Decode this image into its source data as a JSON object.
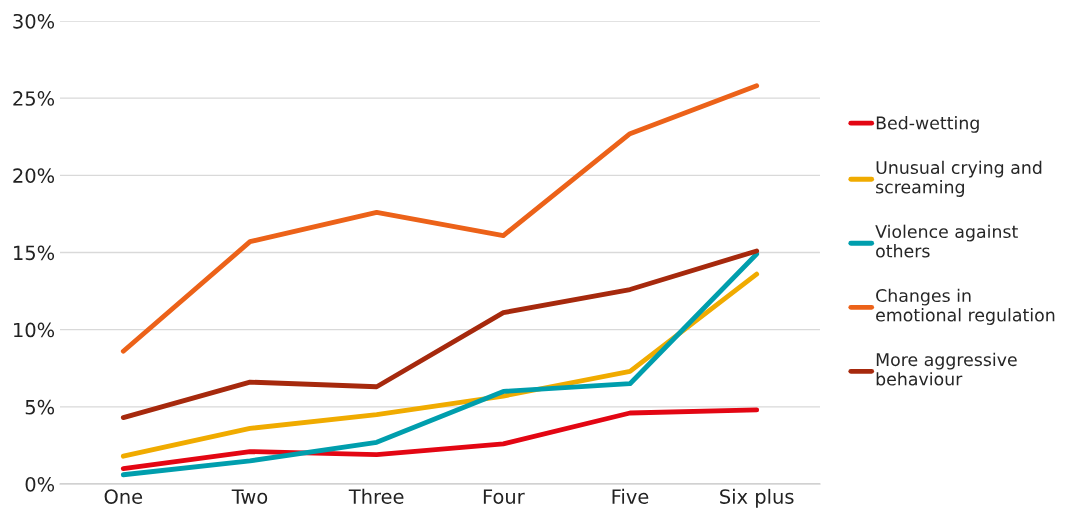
{
  "chart_data": {
    "type": "line",
    "categories": [
      "One",
      "Two",
      "Three",
      "Four",
      "Five",
      "Six plus"
    ],
    "series": [
      {
        "name": "Bed-wetting",
        "color": "#e30613",
        "values": [
          1.0,
          2.1,
          1.9,
          2.6,
          4.6,
          4.8
        ]
      },
      {
        "name": "Unusual crying and\nscreaming",
        "color": "#f0ab00",
        "values": [
          1.8,
          3.6,
          4.5,
          5.7,
          7.3,
          13.6
        ]
      },
      {
        "name": "Violence against\nothers",
        "color": "#009ead",
        "values": [
          0.6,
          1.5,
          2.7,
          6.0,
          6.5,
          14.9
        ]
      },
      {
        "name": "Changes in\nemotional regulation",
        "color": "#ec6219",
        "values": [
          8.6,
          15.7,
          17.6,
          16.1,
          22.7,
          25.8
        ]
      },
      {
        "name": "More aggressive\nbehaviour",
        "color": "#a6290d",
        "values": [
          4.3,
          6.6,
          6.3,
          11.1,
          12.6,
          15.1
        ]
      }
    ],
    "ylim": [
      0,
      30
    ],
    "yticks": [
      {
        "value": 0,
        "label": "0%"
      },
      {
        "value": 5,
        "label": "5%"
      },
      {
        "value": 10,
        "label": "10%"
      },
      {
        "value": 15,
        "label": "15%"
      },
      {
        "value": 20,
        "label": "20%"
      },
      {
        "value": 25,
        "label": "25%"
      },
      {
        "value": 30,
        "label": "30%"
      }
    ],
    "grid": "y",
    "legend": "right",
    "marker": "none",
    "line_style": "solid"
  }
}
